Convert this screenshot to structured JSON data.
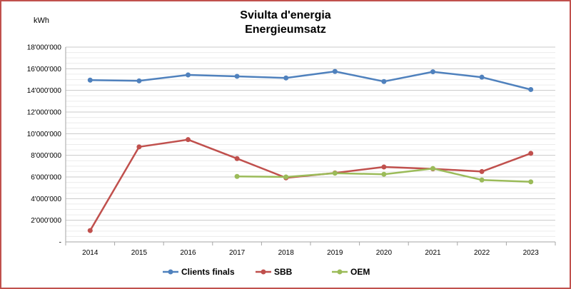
{
  "chart_data": {
    "type": "line",
    "title": "Sviulta d'energia",
    "subtitle": "Energieumsatz",
    "ylabel": "kWh",
    "xlabel": "",
    "categories": [
      "2014",
      "2015",
      "2016",
      "2017",
      "2018",
      "2019",
      "2020",
      "2021",
      "2022",
      "2023"
    ],
    "ylim": [
      0,
      18000000
    ],
    "y_tick_values": [
      0,
      2000000,
      4000000,
      6000000,
      8000000,
      10000000,
      12000000,
      14000000,
      16000000,
      18000000
    ],
    "y_tick_labels": [
      "-",
      "2'000'000",
      "4'000'000",
      "6'000'000",
      "8'000'000",
      "10'000'000",
      "12'000'000",
      "14'000'000",
      "16'000'000",
      "18'000'000"
    ],
    "grid": true,
    "legend_position": "bottom",
    "series": [
      {
        "name": "Clients finals",
        "color": "#4f81bd",
        "values": [
          14950000,
          14880000,
          15430000,
          15300000,
          15150000,
          15750000,
          14820000,
          15720000,
          15220000,
          14080000
        ]
      },
      {
        "name": "SBB",
        "color": "#c0504d",
        "values": [
          1050000,
          8780000,
          9450000,
          7700000,
          5920000,
          6370000,
          6920000,
          6750000,
          6500000,
          8180000
        ]
      },
      {
        "name": "OEM",
        "color": "#9bbb59",
        "values": [
          null,
          null,
          null,
          6050000,
          6000000,
          6350000,
          6250000,
          6780000,
          5720000,
          5550000
        ]
      }
    ]
  }
}
